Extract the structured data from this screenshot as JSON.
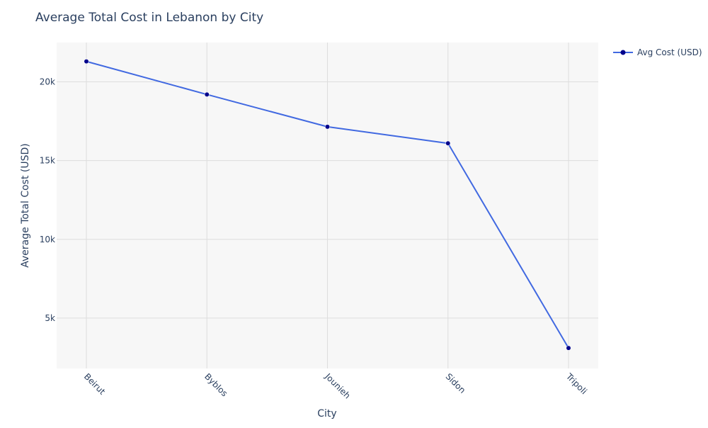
{
  "chart_data": {
    "type": "line",
    "title": "Average Total Cost in Lebanon by City",
    "xlabel": "City",
    "ylabel": "Average Total Cost (USD)",
    "categories": [
      "Beirut",
      "Byblos",
      "Jounieh",
      "Sidon",
      "Tripoli"
    ],
    "series": [
      {
        "name": "Avg Cost (USD)",
        "values": [
          21300,
          19200,
          17150,
          16100,
          3100
        ]
      }
    ],
    "ylim": [
      1800,
      22500
    ],
    "yticks": [
      5000,
      10000,
      15000,
      20000
    ],
    "ytick_labels": [
      "5k",
      "10k",
      "15k",
      "20k"
    ],
    "grid": true,
    "legend_position": "top-right",
    "colors": {
      "line": "#4169e1",
      "marker": "#00008b",
      "plot_background": "#f7f7f7",
      "grid": "#dddddd",
      "text": "#2a3f5f"
    }
  }
}
